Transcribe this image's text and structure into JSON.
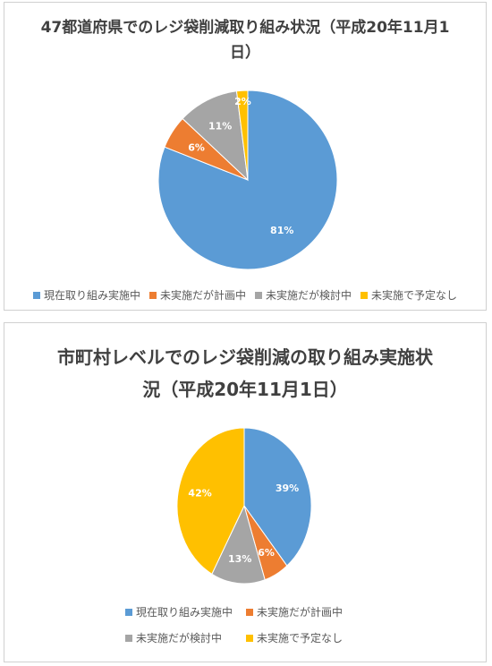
{
  "chart_data": [
    {
      "type": "pie",
      "title": "47都道府県でのレジ袋削減取り組み状況（平成20年11月1日）",
      "categories": [
        "現在取り組み実施中",
        "未実施だが計画中",
        "未実施だが検討中",
        "未実施で予定なし"
      ],
      "values": [
        81,
        6,
        11,
        2
      ],
      "labels": [
        "81%",
        "6%",
        "11%",
        "2%"
      ],
      "colors": [
        "#5B9BD5",
        "#ED7D31",
        "#A5A5A5",
        "#FFC000"
      ],
      "legend": "bottom"
    },
    {
      "type": "pie",
      "title": "市町村レベルでのレジ袋削減の取り組み実施状況（平成20年11月1日）",
      "categories": [
        "現在取り組み実施中",
        "未実施だが計画中",
        "未実施だが検討中",
        "未実施で予定なし"
      ],
      "values": [
        39,
        6,
        13,
        42
      ],
      "labels": [
        "39%",
        "6%",
        "13%",
        "42%"
      ],
      "colors": [
        "#5B9BD5",
        "#ED7D31",
        "#A5A5A5",
        "#FFC000"
      ],
      "legend": "bottom"
    }
  ]
}
